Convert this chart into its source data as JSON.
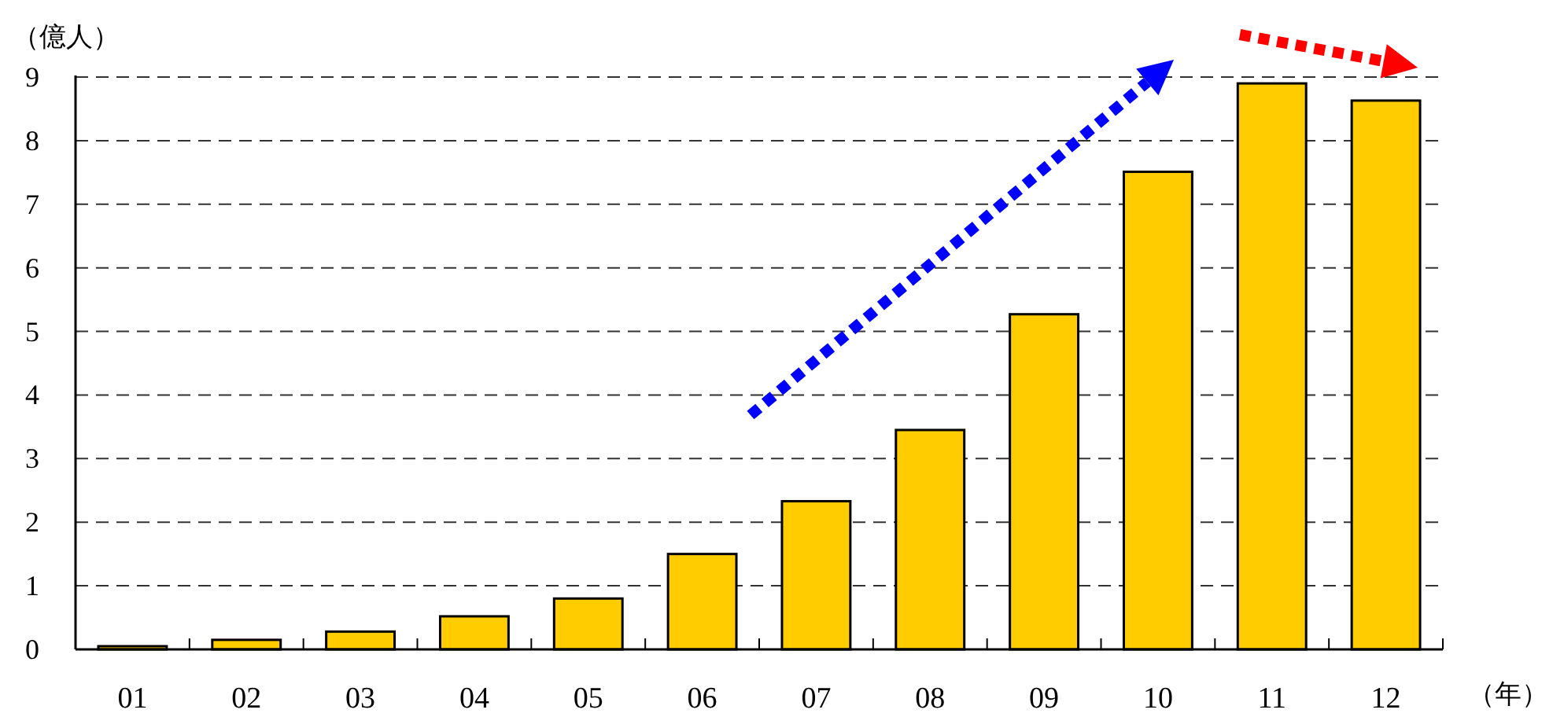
{
  "chart_data": {
    "type": "bar",
    "ylabel": "（億人）",
    "xlabel": "（年）",
    "categories": [
      "01",
      "02",
      "03",
      "04",
      "05",
      "06",
      "07",
      "08",
      "09",
      "10",
      "11",
      "12"
    ],
    "values": [
      0.05,
      0.15,
      0.28,
      0.52,
      0.8,
      1.5,
      2.33,
      3.45,
      5.27,
      7.51,
      8.9,
      8.63
    ],
    "color": "#ffcc00",
    "ylim": [
      0,
      9
    ],
    "yticks": [
      0,
      1,
      2,
      3,
      4,
      5,
      6,
      7,
      8,
      9
    ],
    "grid": "y"
  }
}
